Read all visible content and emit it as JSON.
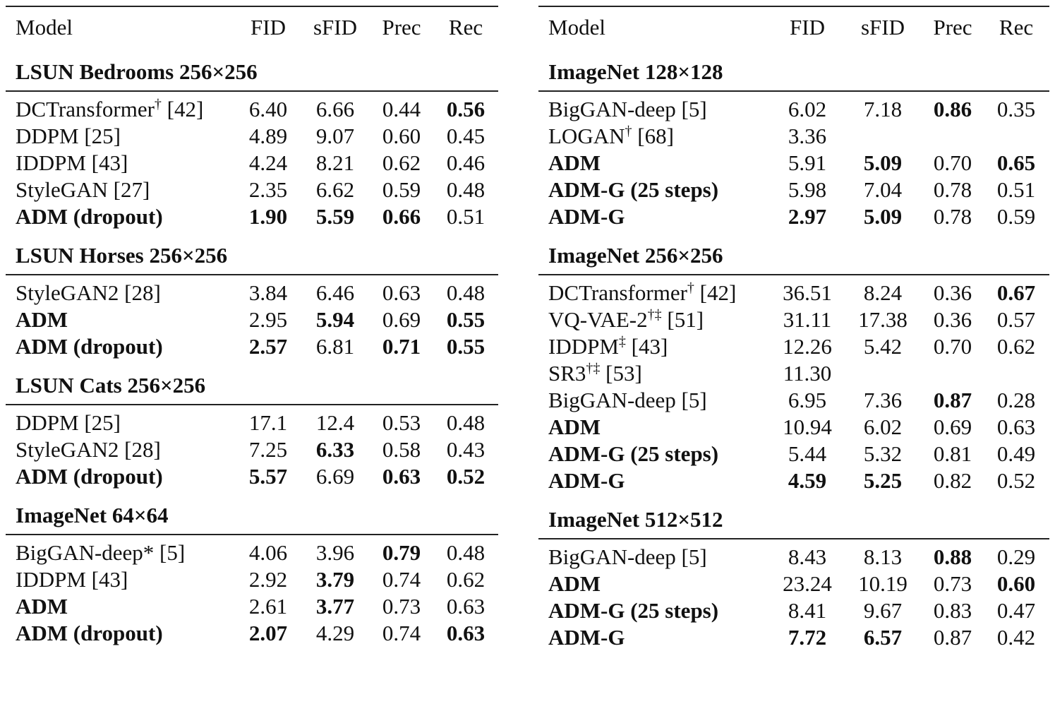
{
  "columns": {
    "model": "Model",
    "fid": "FID",
    "sfid": "sFID",
    "prec": "Prec",
    "rec": "Rec"
  },
  "left": {
    "sections": [
      {
        "title": "LSUN Bedrooms 256×256",
        "rows": [
          {
            "model": "DCTransformer",
            "sup": "†",
            "ref": "[42]",
            "bold_model": false,
            "fid": "6.40",
            "sfid": "6.66",
            "prec": "0.44",
            "rec": "0.56",
            "bold": [
              "rec"
            ]
          },
          {
            "model": "DDPM",
            "sup": "",
            "ref": "[25]",
            "bold_model": false,
            "fid": "4.89",
            "sfid": "9.07",
            "prec": "0.60",
            "rec": "0.45",
            "bold": []
          },
          {
            "model": "IDDPM",
            "sup": "",
            "ref": "[43]",
            "bold_model": false,
            "fid": "4.24",
            "sfid": "8.21",
            "prec": "0.62",
            "rec": "0.46",
            "bold": []
          },
          {
            "model": "StyleGAN",
            "sup": "",
            "ref": "[27]",
            "bold_model": false,
            "fid": "2.35",
            "sfid": "6.62",
            "prec": "0.59",
            "rec": "0.48",
            "bold": []
          },
          {
            "model": "ADM (dropout)",
            "sup": "",
            "ref": "",
            "bold_model": true,
            "fid": "1.90",
            "sfid": "5.59",
            "prec": "0.66",
            "rec": "0.51",
            "bold": [
              "fid",
              "sfid",
              "prec"
            ]
          }
        ]
      },
      {
        "title": "LSUN Horses 256×256",
        "rows": [
          {
            "model": "StyleGAN2",
            "sup": "",
            "ref": "[28]",
            "bold_model": false,
            "fid": "3.84",
            "sfid": "6.46",
            "prec": "0.63",
            "rec": "0.48",
            "bold": []
          },
          {
            "model": "ADM",
            "sup": "",
            "ref": "",
            "bold_model": true,
            "fid": "2.95",
            "sfid": "5.94",
            "prec": "0.69",
            "rec": "0.55",
            "bold": [
              "sfid",
              "rec"
            ]
          },
          {
            "model": "ADM (dropout)",
            "sup": "",
            "ref": "",
            "bold_model": true,
            "fid": "2.57",
            "sfid": "6.81",
            "prec": "0.71",
            "rec": "0.55",
            "bold": [
              "fid",
              "prec",
              "rec"
            ]
          }
        ]
      },
      {
        "title": "LSUN Cats 256×256",
        "rows": [
          {
            "model": "DDPM",
            "sup": "",
            "ref": "[25]",
            "bold_model": false,
            "fid": "17.1",
            "sfid": "12.4",
            "prec": "0.53",
            "rec": "0.48",
            "bold": []
          },
          {
            "model": "StyleGAN2",
            "sup": "",
            "ref": "[28]",
            "bold_model": false,
            "fid": "7.25",
            "sfid": "6.33",
            "prec": "0.58",
            "rec": "0.43",
            "bold": [
              "sfid"
            ]
          },
          {
            "model": "ADM (dropout)",
            "sup": "",
            "ref": "",
            "bold_model": true,
            "fid": "5.57",
            "sfid": "6.69",
            "prec": "0.63",
            "rec": "0.52",
            "bold": [
              "fid",
              "prec",
              "rec"
            ]
          }
        ]
      },
      {
        "title": "ImageNet 64×64",
        "rows": [
          {
            "model": "BigGAN-deep*",
            "sup": "",
            "ref": "[5]",
            "bold_model": false,
            "fid": "4.06",
            "sfid": "3.96",
            "prec": "0.79",
            "rec": "0.48",
            "bold": [
              "prec"
            ]
          },
          {
            "model": "IDDPM",
            "sup": "",
            "ref": "[43]",
            "bold_model": false,
            "fid": "2.92",
            "sfid": "3.79",
            "prec": "0.74",
            "rec": "0.62",
            "bold": [
              "sfid"
            ]
          },
          {
            "model": "ADM",
            "sup": "",
            "ref": "",
            "bold_model": true,
            "fid": "2.61",
            "sfid": "3.77",
            "prec": "0.73",
            "rec": "0.63",
            "bold": [
              "sfid"
            ]
          },
          {
            "model": "ADM (dropout)",
            "sup": "",
            "ref": "",
            "bold_model": true,
            "fid": "2.07",
            "sfid": "4.29",
            "prec": "0.74",
            "rec": "0.63",
            "bold": [
              "fid",
              "rec"
            ]
          }
        ]
      }
    ]
  },
  "right": {
    "sections": [
      {
        "title": "ImageNet 128×128",
        "rows": [
          {
            "model": "BigGAN-deep",
            "sup": "",
            "ref": "[5]",
            "bold_model": false,
            "fid": "6.02",
            "sfid": "7.18",
            "prec": "0.86",
            "rec": "0.35",
            "bold": [
              "prec"
            ]
          },
          {
            "model": "LOGAN",
            "sup": "†",
            "ref": "[68]",
            "bold_model": false,
            "fid": "3.36",
            "sfid": "",
            "prec": "",
            "rec": "",
            "bold": []
          },
          {
            "model": "ADM",
            "sup": "",
            "ref": "",
            "bold_model": true,
            "fid": "5.91",
            "sfid": "5.09",
            "prec": "0.70",
            "rec": "0.65",
            "bold": [
              "sfid",
              "rec"
            ]
          },
          {
            "model": "ADM-G (25 steps)",
            "sup": "",
            "ref": "",
            "bold_model": true,
            "fid": "5.98",
            "sfid": "7.04",
            "prec": "0.78",
            "rec": "0.51",
            "bold": []
          },
          {
            "model": "ADM-G",
            "sup": "",
            "ref": "",
            "bold_model": true,
            "fid": "2.97",
            "sfid": "5.09",
            "prec": "0.78",
            "rec": "0.59",
            "bold": [
              "fid",
              "sfid"
            ]
          }
        ]
      },
      {
        "title": "ImageNet 256×256",
        "rows": [
          {
            "model": "DCTransformer",
            "sup": "†",
            "ref": "[42]",
            "bold_model": false,
            "fid": "36.51",
            "sfid": "8.24",
            "prec": "0.36",
            "rec": "0.67",
            "bold": [
              "rec"
            ]
          },
          {
            "model": "VQ-VAE-2",
            "sup": "†‡",
            "ref": "[51]",
            "bold_model": false,
            "fid": "31.11",
            "sfid": "17.38",
            "prec": "0.36",
            "rec": "0.57",
            "bold": []
          },
          {
            "model": "IDDPM",
            "sup": "‡",
            "ref": "[43]",
            "bold_model": false,
            "fid": "12.26",
            "sfid": "5.42",
            "prec": "0.70",
            "rec": "0.62",
            "bold": []
          },
          {
            "model": "SR3",
            "sup": "†‡",
            "ref": "[53]",
            "bold_model": false,
            "fid": "11.30",
            "sfid": "",
            "prec": "",
            "rec": "",
            "bold": []
          },
          {
            "model": "BigGAN-deep",
            "sup": "",
            "ref": "[5]",
            "bold_model": false,
            "fid": "6.95",
            "sfid": "7.36",
            "prec": "0.87",
            "rec": "0.28",
            "bold": [
              "prec"
            ]
          },
          {
            "model": "ADM",
            "sup": "",
            "ref": "",
            "bold_model": true,
            "fid": "10.94",
            "sfid": "6.02",
            "prec": "0.69",
            "rec": "0.63",
            "bold": []
          },
          {
            "model": "ADM-G (25 steps)",
            "sup": "",
            "ref": "",
            "bold_model": true,
            "fid": "5.44",
            "sfid": "5.32",
            "prec": "0.81",
            "rec": "0.49",
            "bold": []
          },
          {
            "model": "ADM-G",
            "sup": "",
            "ref": "",
            "bold_model": true,
            "fid": "4.59",
            "sfid": "5.25",
            "prec": "0.82",
            "rec": "0.52",
            "bold": [
              "fid",
              "sfid"
            ]
          }
        ]
      },
      {
        "title": "ImageNet 512×512",
        "rows": [
          {
            "model": "BigGAN-deep",
            "sup": "",
            "ref": "[5]",
            "bold_model": false,
            "fid": "8.43",
            "sfid": "8.13",
            "prec": "0.88",
            "rec": "0.29",
            "bold": [
              "prec"
            ]
          },
          {
            "model": "ADM",
            "sup": "",
            "ref": "",
            "bold_model": true,
            "fid": "23.24",
            "sfid": "10.19",
            "prec": "0.73",
            "rec": "0.60",
            "bold": [
              "rec"
            ]
          },
          {
            "model": "ADM-G (25 steps)",
            "sup": "",
            "ref": "",
            "bold_model": true,
            "fid": "8.41",
            "sfid": "9.67",
            "prec": "0.83",
            "rec": "0.47",
            "bold": []
          },
          {
            "model": "ADM-G",
            "sup": "",
            "ref": "",
            "bold_model": true,
            "fid": "7.72",
            "sfid": "6.57",
            "prec": "0.87",
            "rec": "0.42",
            "bold": [
              "fid",
              "sfid"
            ]
          }
        ]
      }
    ]
  }
}
